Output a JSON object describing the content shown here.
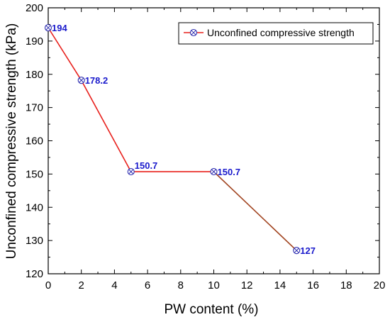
{
  "chart_data": {
    "type": "line",
    "title": "",
    "xlabel": "PW content (%)",
    "ylabel": "Unconfined compressive strength (kPa)",
    "xlim": [
      0,
      20
    ],
    "ylim": [
      120,
      200
    ],
    "x_ticks": [
      0,
      2,
      4,
      6,
      8,
      10,
      12,
      14,
      16,
      18,
      20
    ],
    "y_ticks": [
      120,
      130,
      140,
      150,
      160,
      170,
      180,
      190,
      200
    ],
    "grid": false,
    "legend_position": "top-right",
    "series": [
      {
        "name": "Unconfined compressive strength",
        "x": [
          0,
          2,
          5,
          10,
          15
        ],
        "y": [
          194,
          178.2,
          150.7,
          150.7,
          127
        ],
        "data_labels": [
          "194",
          "178.2",
          "150.7",
          "150.7",
          "127"
        ],
        "line_color": "#e8201c",
        "marker": "circle-x",
        "marker_color": "#2d2db0",
        "label_color": "#1a1acc"
      }
    ]
  }
}
